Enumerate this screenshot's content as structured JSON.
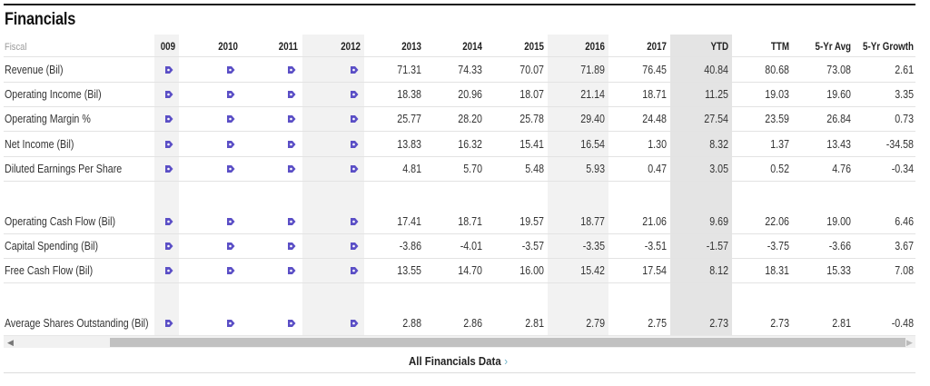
{
  "title": "Financials",
  "header": {
    "fiscal": "Fiscal",
    "columns": [
      "009",
      "2010",
      "2011",
      "2012",
      "2013",
      "2014",
      "2015",
      "2016",
      "2017",
      "YTD",
      "TTM",
      "5-Yr Avg",
      "5-Yr Growth"
    ]
  },
  "rows": [
    {
      "label": "Revenue (Bil)",
      "values": [
        "71.31",
        "74.33",
        "70.07",
        "71.89",
        "76.45",
        "40.84",
        "80.68",
        "73.08",
        "2.61"
      ]
    },
    {
      "label": "Operating Income (Bil)",
      "values": [
        "18.38",
        "20.96",
        "18.07",
        "21.14",
        "18.71",
        "11.25",
        "19.03",
        "19.60",
        "3.35"
      ]
    },
    {
      "label": "Operating Margin %",
      "values": [
        "25.77",
        "28.20",
        "25.78",
        "29.40",
        "24.48",
        "27.54",
        "23.59",
        "26.84",
        "0.73"
      ]
    },
    {
      "label": "Net Income (Bil)",
      "values": [
        "13.83",
        "16.32",
        "15.41",
        "16.54",
        "1.30",
        "8.32",
        "1.37",
        "13.43",
        "-34.58"
      ]
    },
    {
      "label": "Diluted Earnings Per Share",
      "values": [
        "4.81",
        "5.70",
        "5.48",
        "5.93",
        "0.47",
        "3.05",
        "0.52",
        "4.76",
        "-0.34"
      ]
    },
    {
      "label": "Operating Cash Flow (Bil)",
      "values": [
        "17.41",
        "18.71",
        "19.57",
        "18.77",
        "21.06",
        "9.69",
        "22.06",
        "19.00",
        "6.46"
      ]
    },
    {
      "label": "Capital Spending (Bil)",
      "values": [
        "-3.86",
        "-4.01",
        "-3.57",
        "-3.35",
        "-3.51",
        "-1.57",
        "-3.75",
        "-3.66",
        "3.67"
      ]
    },
    {
      "label": "Free Cash Flow (Bil)",
      "values": [
        "13.55",
        "14.70",
        "16.00",
        "15.42",
        "17.54",
        "8.12",
        "18.31",
        "15.33",
        "7.08"
      ]
    },
    {
      "label": "Average Shares Outstanding (Bil)",
      "values": [
        "2.88",
        "2.86",
        "2.81",
        "2.79",
        "2.75",
        "2.73",
        "2.73",
        "2.81",
        "-0.48"
      ]
    }
  ],
  "icon": {
    "name": "premium-data-icon",
    "color": "#5b4fc6"
  },
  "footer": {
    "link": "All Financials Data",
    "chevron": "›"
  },
  "scrollbar": {
    "left_arrow": "◀",
    "right_arrow": "▶"
  },
  "colors": {
    "shaded_column": "#f2f2f2",
    "ytd_column": "#e4e4e4"
  }
}
